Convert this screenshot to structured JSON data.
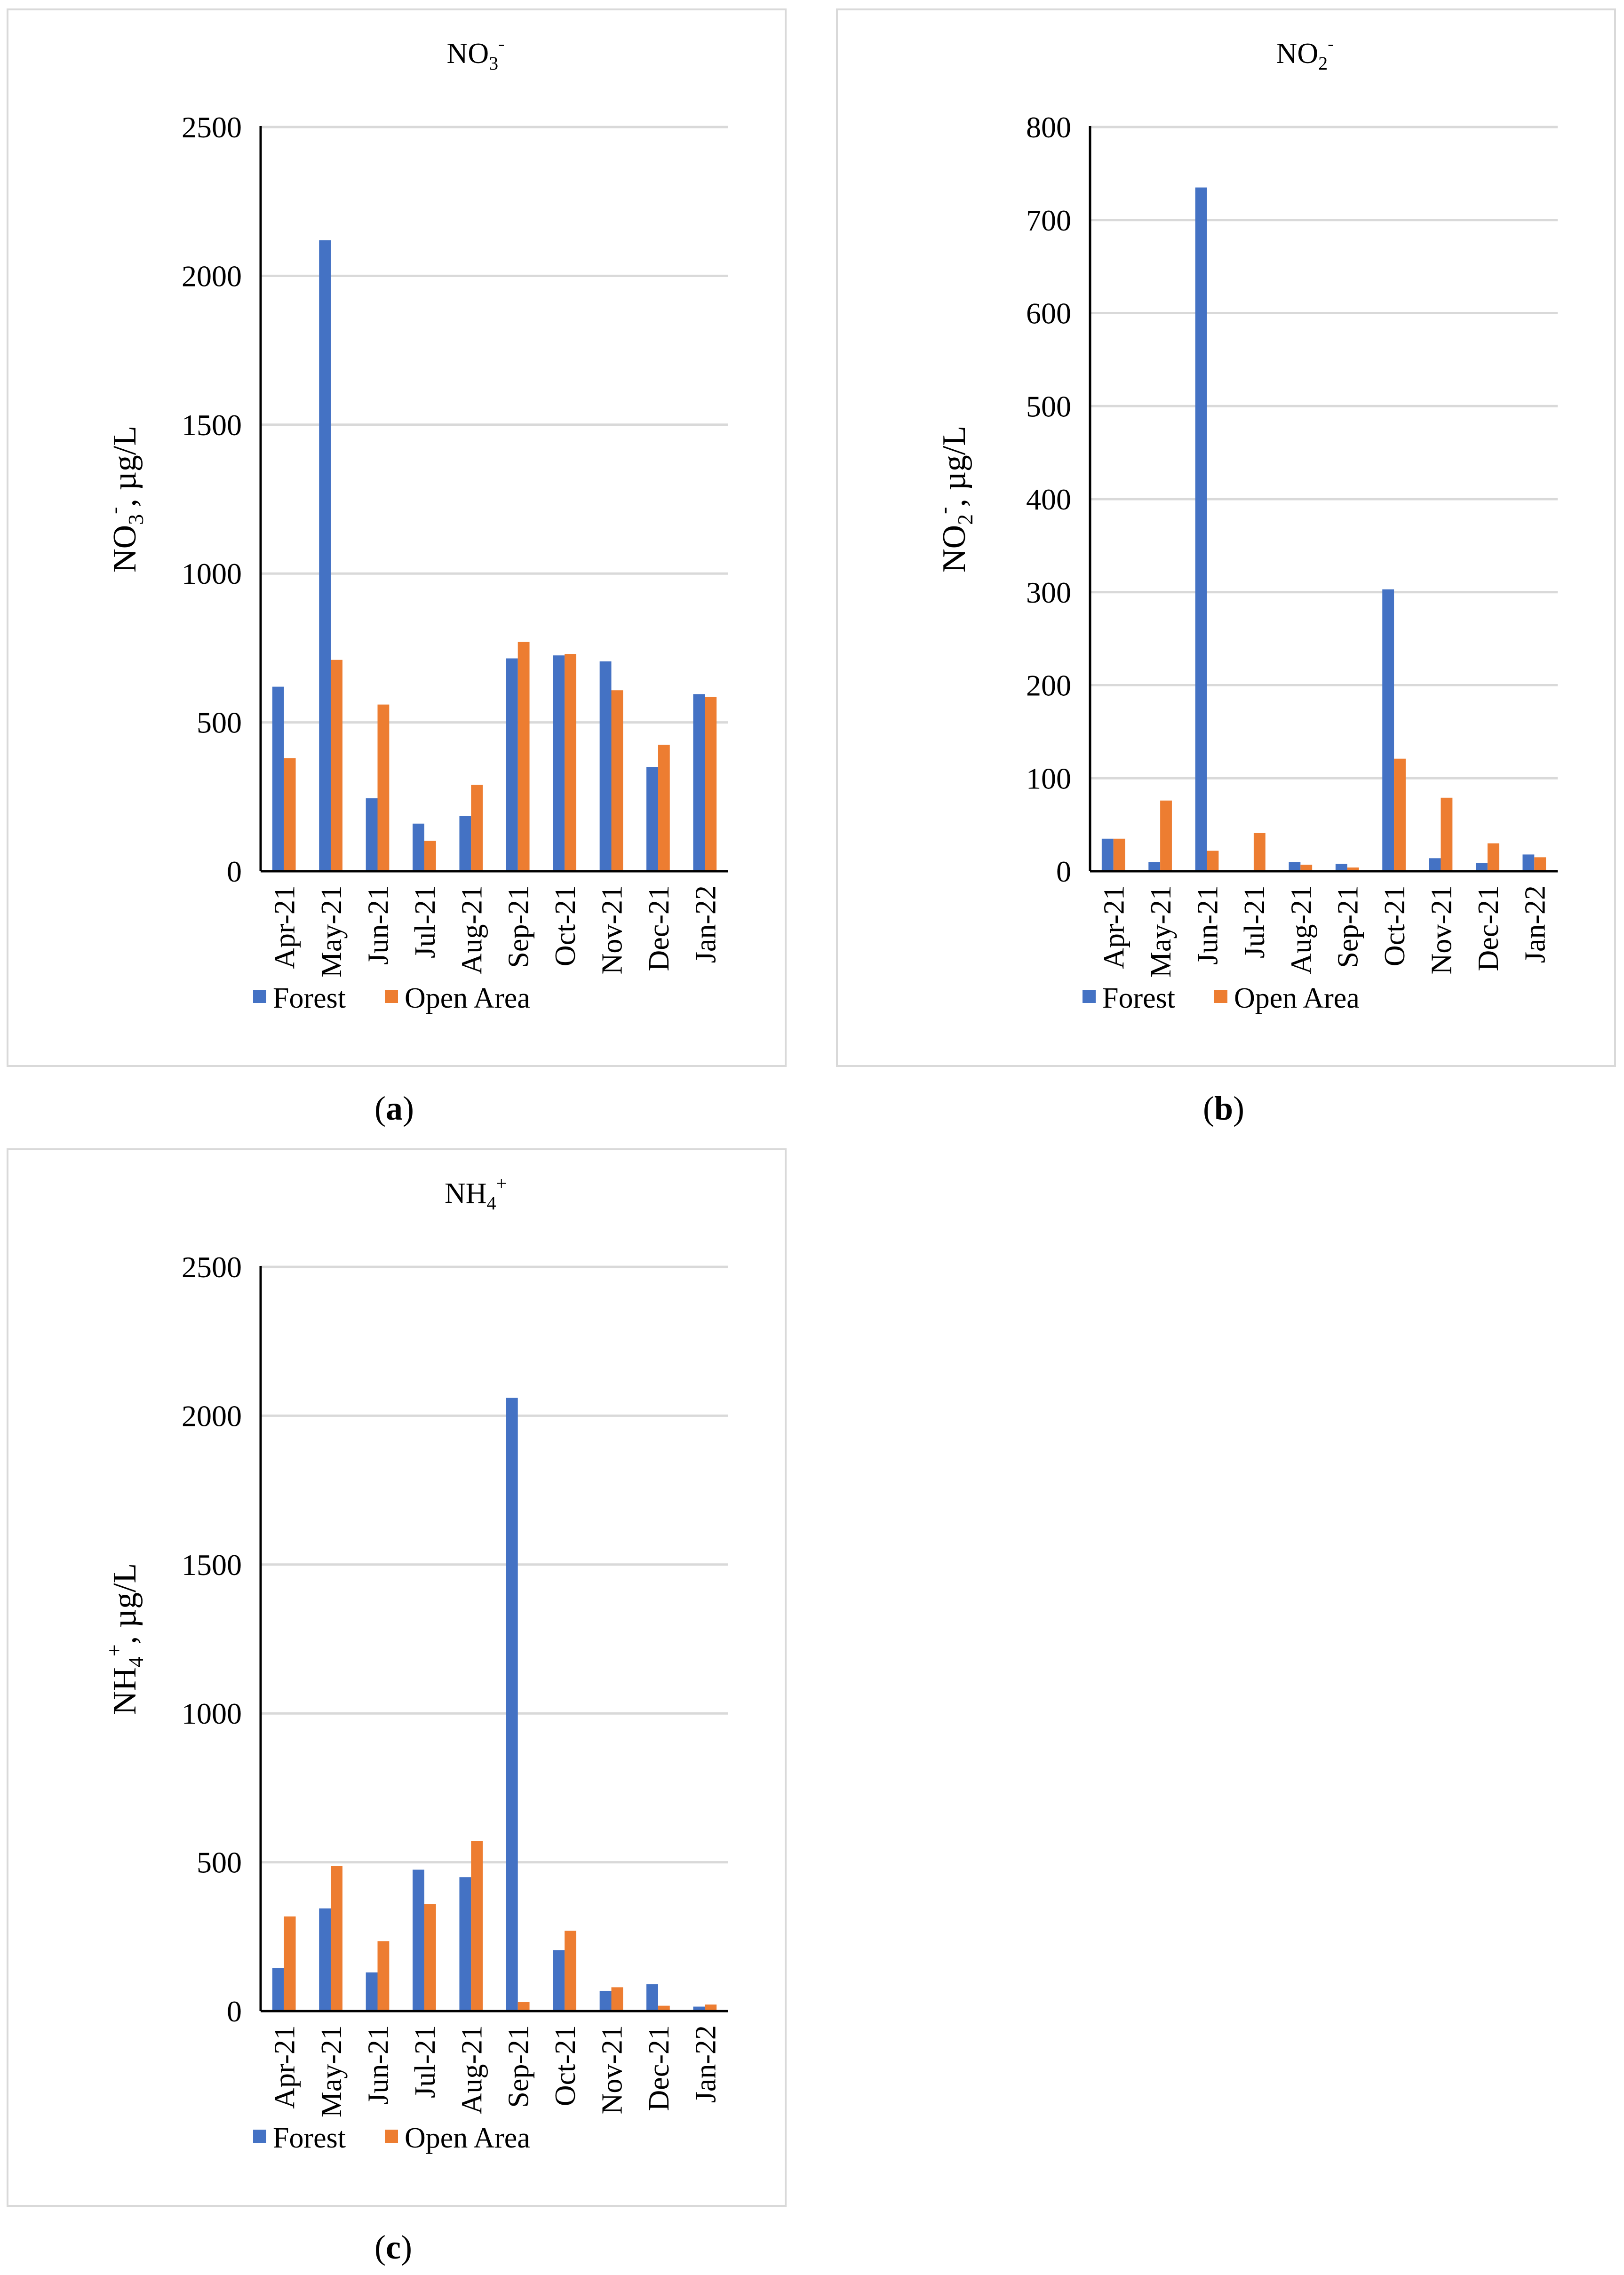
{
  "colors": {
    "forest": "#4472c4",
    "open_area": "#ed7d31",
    "grid": "#d9d9d9",
    "axis": "#000000"
  },
  "captions": [
    {
      "pre": "(",
      "letter": "a",
      "post": ")"
    },
    {
      "pre": "(",
      "letter": "b",
      "post": ")"
    },
    {
      "pre": "(",
      "letter": "c",
      "post": ")"
    }
  ],
  "chart_data": [
    {
      "type": "bar",
      "title": {
        "base": "NO",
        "sub": "3",
        "sup": "-"
      },
      "ylabel": {
        "base": "NO",
        "sub": "3",
        "sup": "-",
        "rest": ", µg/L"
      },
      "xlabel": "",
      "categories": [
        "Apr-21",
        "May-21",
        "Jun-21",
        "Jul-21",
        "Aug-21",
        "Sep-21",
        "Oct-21",
        "Nov-21",
        "Dec-21",
        "Jan-22"
      ],
      "series": [
        {
          "name": "Forest",
          "values": [
            620,
            2120,
            245,
            160,
            185,
            715,
            725,
            705,
            350,
            595
          ]
        },
        {
          "name": "Open Area",
          "values": [
            380,
            710,
            560,
            102,
            290,
            770,
            730,
            608,
            425,
            585
          ]
        }
      ],
      "ylim": [
        0,
        2500
      ],
      "yticks": [
        0,
        500,
        1000,
        1500,
        2000,
        2500
      ],
      "grid": true,
      "legend": "bottom"
    },
    {
      "type": "bar",
      "title": {
        "base": "NO",
        "sub": "2",
        "sup": "-"
      },
      "ylabel": {
        "base": "NO",
        "sub": "2",
        "sup": "-",
        "rest": ", µg/L"
      },
      "xlabel": "",
      "categories": [
        "Apr-21",
        "May-21",
        "Jun-21",
        "Jul-21",
        "Aug-21",
        "Sep-21",
        "Oct-21",
        "Nov-21",
        "Dec-21",
        "Jan-22"
      ],
      "series": [
        {
          "name": "Forest",
          "values": [
            35,
            10,
            735,
            0,
            10,
            8,
            303,
            14,
            9,
            18
          ]
        },
        {
          "name": "Open Area",
          "values": [
            35,
            76,
            22,
            41,
            7,
            4,
            121,
            79,
            30,
            15
          ]
        }
      ],
      "ylim": [
        0,
        800
      ],
      "yticks": [
        0,
        100,
        200,
        300,
        400,
        500,
        600,
        700,
        800
      ],
      "grid": true,
      "legend": "bottom"
    },
    {
      "type": "bar",
      "title": {
        "base": "NH",
        "sub": "4",
        "sup": "+"
      },
      "ylabel": {
        "base": "NH",
        "sub": "4",
        "sup": "+",
        "rest": ", µg/L"
      },
      "xlabel": "",
      "categories": [
        "Apr-21",
        "May-21",
        "Jun-21",
        "Jul-21",
        "Aug-21",
        "Sep-21",
        "Oct-21",
        "Nov-21",
        "Dec-21",
        "Jan-22"
      ],
      "series": [
        {
          "name": "Forest",
          "values": [
            145,
            345,
            130,
            475,
            450,
            2060,
            205,
            68,
            90,
            15
          ]
        },
        {
          "name": "Open Area",
          "values": [
            318,
            487,
            235,
            360,
            572,
            30,
            270,
            80,
            18,
            22
          ]
        }
      ],
      "ylim": [
        0,
        2500
      ],
      "yticks": [
        0,
        500,
        1000,
        1500,
        2000,
        2500
      ],
      "grid": true,
      "legend": "bottom"
    }
  ]
}
